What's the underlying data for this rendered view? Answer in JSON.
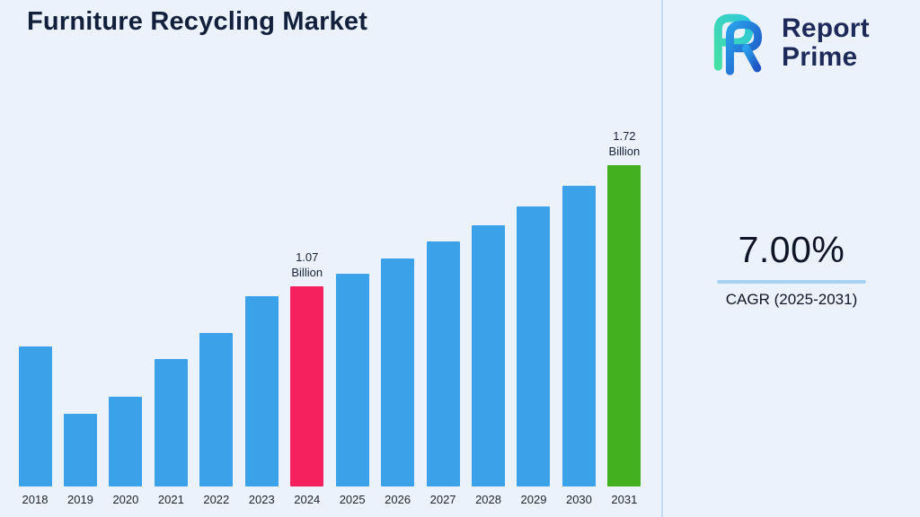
{
  "page": {
    "title": "Furniture Recycling Market",
    "background_color": "#ebf2fb",
    "divider_color": "#c2dbf5"
  },
  "brand": {
    "name_line1": "Report",
    "name_line2": "Prime",
    "logo_colors": {
      "green": "#45e0a6",
      "teal": "#2dc8d8",
      "light_blue": "#2aa0ea",
      "dark_blue": "#1d53c5",
      "text": "#1e2a5a"
    }
  },
  "stats": {
    "cagr_value": "7.00%",
    "cagr_label": "CAGR (2025-2031)",
    "underline_color": "#a6d3f2"
  },
  "chart_data": {
    "type": "bar",
    "title": "Furniture Recycling Market",
    "xlabel": "",
    "ylabel": "",
    "unit": "Billion",
    "categories": [
      "2018",
      "2019",
      "2020",
      "2021",
      "2022",
      "2023",
      "2024",
      "2025",
      "2026",
      "2027",
      "2028",
      "2029",
      "2030",
      "2031"
    ],
    "values": [
      0.75,
      0.39,
      0.48,
      0.68,
      0.82,
      1.02,
      1.07,
      1.14,
      1.22,
      1.31,
      1.4,
      1.5,
      1.61,
      1.72
    ],
    "ylim": [
      0,
      1.8
    ],
    "grid": false,
    "legend": false,
    "bar_color": "#3ba1e8",
    "highlight_colors": {
      "2024": "#f5205e",
      "2031": "#43b01f"
    },
    "annotations": [
      {
        "category": "2024",
        "lines": [
          "1.07",
          "Billion"
        ]
      },
      {
        "category": "2031",
        "lines": [
          "1.72",
          "Billion"
        ]
      }
    ]
  }
}
